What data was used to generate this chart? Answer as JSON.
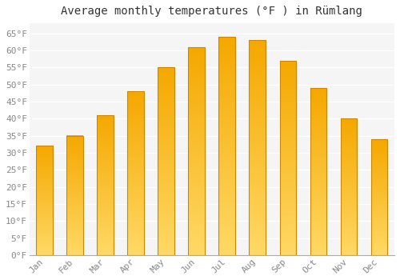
{
  "title": "Average monthly temperatures (°F ) in Rümlang",
  "months": [
    "Jan",
    "Feb",
    "Mar",
    "Apr",
    "May",
    "Jun",
    "Jul",
    "Aug",
    "Sep",
    "Oct",
    "Nov",
    "Dec"
  ],
  "values": [
    32,
    35,
    41,
    48,
    55,
    61,
    64,
    63,
    57,
    49,
    40,
    34
  ],
  "bar_color_bottom": "#F5A800",
  "bar_color_top": "#FFD966",
  "bar_edge_color": "#CC8800",
  "ylim": [
    0,
    68
  ],
  "yticks": [
    0,
    5,
    10,
    15,
    20,
    25,
    30,
    35,
    40,
    45,
    50,
    55,
    60,
    65
  ],
  "ytick_labels": [
    "0°F",
    "5°F",
    "10°F",
    "15°F",
    "20°F",
    "25°F",
    "30°F",
    "35°F",
    "40°F",
    "45°F",
    "50°F",
    "55°F",
    "60°F",
    "65°F"
  ],
  "background_color": "#ffffff",
  "plot_bg_color": "#f5f5f5",
  "grid_color": "#ffffff",
  "title_fontsize": 10,
  "tick_fontsize": 8,
  "font_family": "monospace",
  "tick_color": "#888888",
  "bar_width": 0.55
}
